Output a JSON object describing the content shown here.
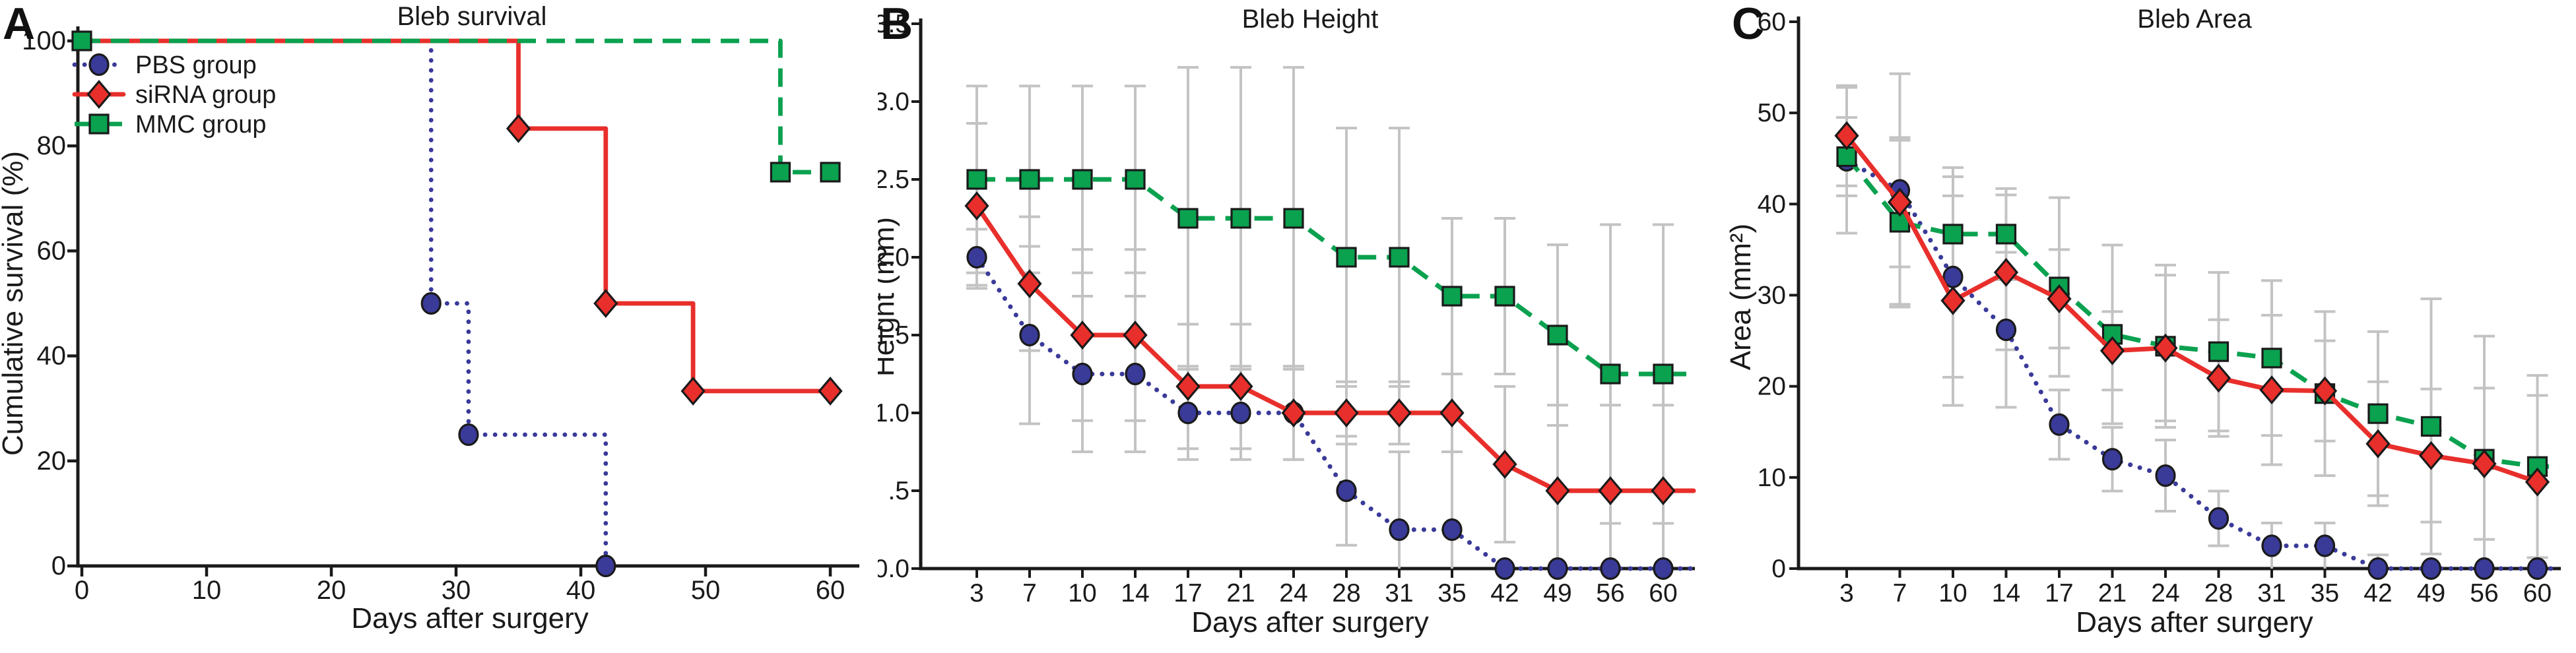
{
  "figure": {
    "panels": [
      {
        "letter": "A",
        "title": "Bleb survival"
      },
      {
        "letter": "B",
        "title": "Bleb Height"
      },
      {
        "letter": "C",
        "title": "Bleb Area"
      }
    ]
  },
  "colors": {
    "pbs": "#3a3a99",
    "sirna": "#e82f2b",
    "mmc": "#0aa14f",
    "error_bar": "#c3c3c3",
    "axis": "#1a1a1a",
    "text": "#1a1a1a",
    "marker_outline": "#1a1a1a"
  },
  "chart_data": [
    {
      "type": "line",
      "panel": "A",
      "mode": "xy-step",
      "title": "Bleb survival",
      "xlabel": "Days after surgery",
      "ylabel": "Cumulative survival (%)",
      "xlim": [
        0,
        62
      ],
      "ylim": [
        0,
        100
      ],
      "xticks": [
        0,
        10,
        20,
        30,
        40,
        50,
        60
      ],
      "yticks": [
        0,
        20,
        40,
        60,
        80,
        100
      ],
      "grid": false,
      "legend_position": "top-left",
      "legend_order": [
        "PBS group",
        "siRNA group",
        "MMC group"
      ],
      "series": [
        {
          "name": "PBS group",
          "color_key": "pbs",
          "line": "dotted",
          "marker": "circle",
          "points": [
            [
              0,
              100
            ],
            [
              28,
              100
            ],
            [
              28,
              50
            ],
            [
              31,
              50
            ],
            [
              31,
              25
            ],
            [
              42,
              25
            ],
            [
              42,
              0
            ]
          ],
          "markers": [
            [
              28,
              50
            ],
            [
              31,
              25
            ],
            [
              42,
              0
            ]
          ]
        },
        {
          "name": "siRNA group",
          "color_key": "sirna",
          "line": "solid",
          "marker": "diamond",
          "points": [
            [
              0,
              100
            ],
            [
              35,
              100
            ],
            [
              35,
              83.3
            ],
            [
              42,
              83.3
            ],
            [
              42,
              50
            ],
            [
              49,
              50
            ],
            [
              49,
              33.3
            ],
            [
              60,
              33.3
            ]
          ],
          "markers": [
            [
              35,
              83.3
            ],
            [
              42,
              50
            ],
            [
              49,
              33.3
            ],
            [
              60,
              33.3
            ]
          ]
        },
        {
          "name": "MMC group",
          "color_key": "mmc",
          "line": "dashed",
          "marker": "square",
          "points": [
            [
              0,
              100
            ],
            [
              56,
              100
            ],
            [
              56,
              75
            ],
            [
              60,
              75
            ]
          ],
          "markers": [
            [
              0,
              100
            ],
            [
              56,
              75
            ],
            [
              60,
              75
            ]
          ]
        }
      ]
    },
    {
      "type": "line",
      "panel": "B",
      "mode": "category",
      "title": "Bleb Height",
      "xlabel": "Days after surgery",
      "ylabel": "Height (mm)",
      "categories": [
        3,
        7,
        10,
        14,
        17,
        21,
        24,
        28,
        31,
        35,
        42,
        49,
        56,
        60
      ],
      "ylim": [
        0,
        3.5
      ],
      "ytick_values": [
        0,
        0.5,
        1.0,
        1.5,
        2.0,
        2.5,
        3.0,
        3.5
      ],
      "ytick_labels": [
        "0.0",
        ".5",
        "1.0",
        "1.5",
        "2.0",
        "2.5",
        "3.0",
        "3.5"
      ],
      "grid": false,
      "series": [
        {
          "name": "PBS group",
          "color_key": "pbs",
          "line": "dotted",
          "marker": "circle",
          "extend": true,
          "values": [
            2.0,
            1.5,
            1.25,
            1.25,
            1.0,
            1.0,
            1.0,
            0.5,
            0.25,
            0.25,
            0,
            0,
            0,
            0
          ],
          "err": [
            0.18,
            0.57,
            0.5,
            0.5,
            0.3,
            0.3,
            0.3,
            0.35,
            0.5,
            0.5,
            0,
            0,
            0,
            0
          ]
        },
        {
          "name": "MMC group",
          "color_key": "mmc",
          "line": "dashed",
          "marker": "square",
          "extend": true,
          "values": [
            2.5,
            2.5,
            2.5,
            2.5,
            2.25,
            2.25,
            2.25,
            2.0,
            2.0,
            1.75,
            1.75,
            1.5,
            1.25,
            1.25
          ],
          "err": [
            0.6,
            0.6,
            0.6,
            0.6,
            0.97,
            0.97,
            0.97,
            0.83,
            0.83,
            0.5,
            0.5,
            0.58,
            0.96,
            0.96
          ]
        },
        {
          "name": "siRNA group",
          "color_key": "sirna",
          "line": "solid",
          "marker": "diamond",
          "extend": true,
          "values": [
            2.33,
            1.83,
            1.5,
            1.5,
            1.17,
            1.17,
            1.0,
            1.0,
            1.0,
            1.0,
            0.67,
            0.5,
            0.5,
            0.5
          ],
          "err": [
            0.53,
            0.43,
            0.55,
            0.55,
            0.4,
            0.4,
            0.3,
            0.2,
            0.2,
            0.25,
            0.5,
            0.55,
            0.55,
            0.55
          ]
        }
      ]
    },
    {
      "type": "line",
      "panel": "C",
      "mode": "category",
      "title": "Bleb Area",
      "xlabel": "Days after surgery",
      "ylabel": "Area (mm²)",
      "categories": [
        3,
        7,
        10,
        14,
        17,
        21,
        24,
        28,
        31,
        35,
        42,
        49,
        56,
        60
      ],
      "ylim": [
        0,
        60
      ],
      "ytick_values": [
        0,
        10,
        20,
        30,
        40,
        50,
        60
      ],
      "ytick_labels": [
        "0",
        "10",
        "20",
        "30",
        "40",
        "50",
        "60"
      ],
      "grid": false,
      "series": [
        {
          "name": "PBS group",
          "color_key": "pbs",
          "line": "dotted",
          "marker": "circle",
          "extend": true,
          "values": [
            44.8,
            41.5,
            32.0,
            26.2,
            15.8,
            12.0,
            10.2,
            5.5,
            2.5,
            2.5,
            0,
            0,
            0,
            0
          ],
          "err": [
            8.0,
            12.8,
            11.0,
            8.5,
            3.8,
            3.5,
            3.9,
            3.0,
            2.5,
            2.5,
            1.5,
            0,
            0,
            0
          ]
        },
        {
          "name": "MMC group",
          "color_key": "mmc",
          "line": "dashed",
          "marker": "square",
          "extend": true,
          "values": [
            45.2,
            38.0,
            36.7,
            36.7,
            30.9,
            25.7,
            24.4,
            23.8,
            23.1,
            19.2,
            17.0,
            15.6,
            12.0,
            11.2
          ],
          "err": [
            4.3,
            9.0,
            7.3,
            5.0,
            9.8,
            9.8,
            8.9,
            8.7,
            8.5,
            9.0,
            9.0,
            14.0,
            13.5,
            10.0
          ]
        },
        {
          "name": "siRNA group",
          "color_key": "sirna",
          "line": "solid",
          "marker": "diamond",
          "extend": false,
          "values": [
            47.5,
            40.2,
            29.4,
            32.5,
            29.6,
            23.9,
            24.2,
            20.9,
            19.6,
            19.5,
            13.7,
            12.4,
            11.5,
            9.5
          ],
          "err": [
            5.5,
            7.1,
            11.5,
            8.5,
            5.4,
            4.3,
            8.0,
            6.4,
            8.2,
            5.5,
            6.8,
            7.3,
            8.3,
            9.5
          ]
        }
      ]
    }
  ]
}
